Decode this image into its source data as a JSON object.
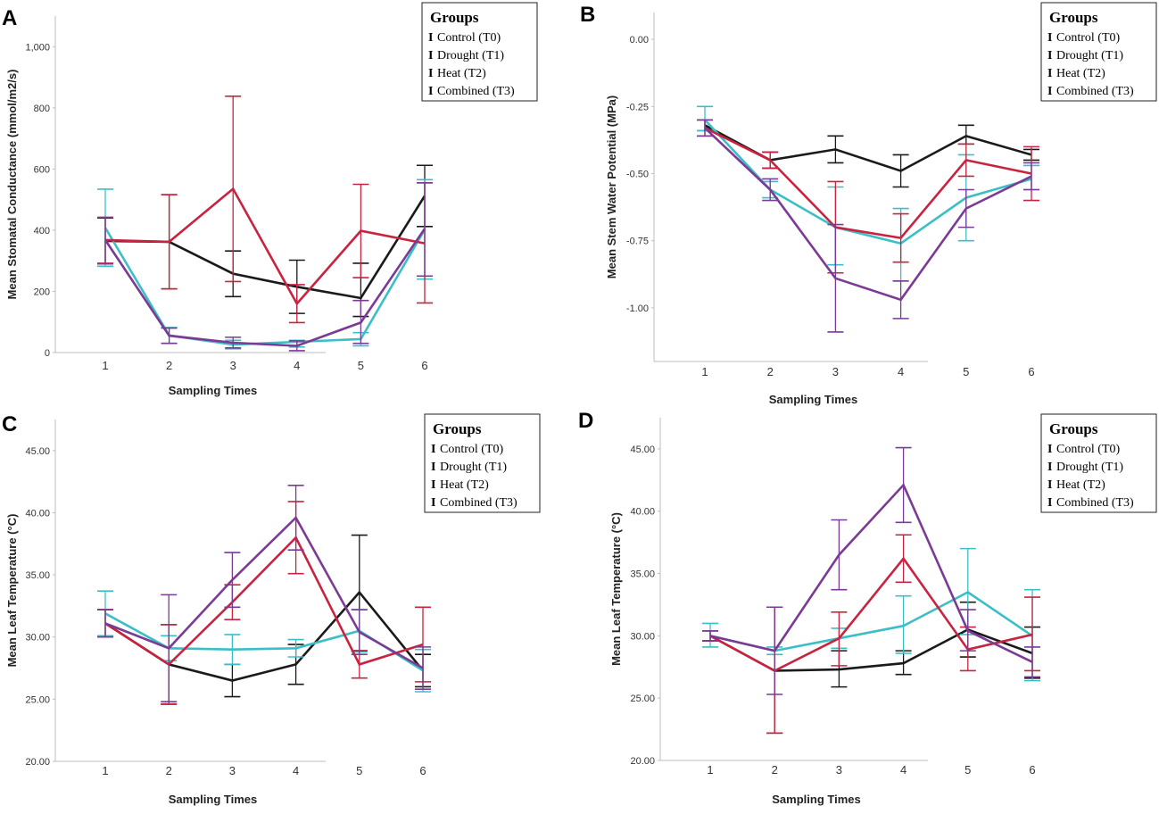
{
  "colors": {
    "control": "#1a1a1a",
    "drought": "#3bbfc6",
    "heat": "#c8233f",
    "combined": "#7b3a94"
  },
  "legend": {
    "title": "Groups",
    "items": [
      "Control (T0)",
      "Drought (T1)",
      "Heat (T2)",
      "Combined (T3)"
    ],
    "marker": "I"
  },
  "chart_data": [
    {
      "panel": "A",
      "type": "line",
      "title": "",
      "xlabel": "Sampling Times",
      "ylabel": "Mean Stomatal Conductance (mmol/m2/s)",
      "x": [
        1,
        2,
        3,
        4,
        5,
        6
      ],
      "ylim": [
        0,
        1100
      ],
      "yticks": [
        0,
        200,
        400,
        600,
        800,
        1000
      ],
      "ytick_labels": [
        "0",
        "200",
        "400",
        "600",
        "800",
        "1,000"
      ],
      "series": [
        {
          "name": "Control (T0)",
          "values": [
            365,
            362,
            258,
            215,
            178,
            512
          ],
          "err_low": [
            290,
            208,
            183,
            128,
            118,
            412
          ],
          "err_high": [
            440,
            516,
            332,
            302,
            292,
            612
          ]
        },
        {
          "name": "Drought (T1)",
          "values": [
            408,
            56,
            26,
            35,
            44,
            402
          ],
          "err_low": [
            282,
            30,
            12,
            18,
            22,
            240
          ],
          "err_high": [
            534,
            82,
            40,
            40,
            65,
            565
          ]
        },
        {
          "name": "Heat (T2)",
          "values": [
            368,
            362,
            535,
            160,
            398,
            357
          ],
          "err_low": [
            292,
            208,
            232,
            98,
            245,
            162
          ],
          "err_high": [
            442,
            516,
            838,
            222,
            550,
            555
          ]
        },
        {
          "name": "Combined (T3)",
          "values": [
            368,
            55,
            32,
            22,
            98,
            405
          ],
          "err_low": [
            290,
            30,
            15,
            6,
            30,
            250
          ],
          "err_high": [
            442,
            80,
            50,
            38,
            170,
            555
          ]
        }
      ]
    },
    {
      "panel": "B",
      "type": "line",
      "title": "",
      "xlabel": "Sampling Times",
      "ylabel": "Mean Stem Water Potential (MPa)",
      "x": [
        1,
        2,
        3,
        4,
        5,
        6
      ],
      "ylim": [
        -1.2,
        0.1
      ],
      "yticks": [
        -1.0,
        -0.75,
        -0.5,
        -0.25,
        0.0
      ],
      "ytick_labels": [
        "-1.00",
        "-0.75",
        "-0.50",
        "-0.25",
        "0.00"
      ],
      "series": [
        {
          "name": "Control (T0)",
          "values": [
            -0.32,
            -0.45,
            -0.41,
            -0.49,
            -0.36,
            -0.43
          ],
          "err_low": [
            -0.34,
            -0.48,
            -0.46,
            -0.55,
            -0.39,
            -0.45
          ],
          "err_high": [
            -0.3,
            -0.42,
            -0.36,
            -0.43,
            -0.32,
            -0.41
          ]
        },
        {
          "name": "Drought (T1)",
          "values": [
            -0.3,
            -0.56,
            -0.7,
            -0.76,
            -0.59,
            -0.52
          ],
          "err_low": [
            -0.34,
            -0.59,
            -0.84,
            -0.9,
            -0.75,
            -0.56
          ],
          "err_high": [
            -0.25,
            -0.53,
            -0.55,
            -0.63,
            -0.43,
            -0.47
          ]
        },
        {
          "name": "Heat (T2)",
          "values": [
            -0.33,
            -0.45,
            -0.7,
            -0.74,
            -0.45,
            -0.5
          ],
          "err_low": [
            -0.36,
            -0.48,
            -0.87,
            -0.83,
            -0.51,
            -0.6
          ],
          "err_high": [
            -0.3,
            -0.42,
            -0.53,
            -0.65,
            -0.39,
            -0.4
          ]
        },
        {
          "name": "Combined (T3)",
          "values": [
            -0.33,
            -0.56,
            -0.89,
            -0.97,
            -0.63,
            -0.51
          ],
          "err_low": [
            -0.36,
            -0.6,
            -1.09,
            -1.04,
            -0.7,
            -0.56
          ],
          "err_high": [
            -0.3,
            -0.52,
            -0.69,
            -0.9,
            -0.56,
            -0.46
          ]
        }
      ]
    },
    {
      "panel": "C",
      "type": "line",
      "title": "",
      "xlabel": "Sampling Times",
      "ylabel": "Mean Leaf Temperature (°C)",
      "x": [
        1,
        2,
        3,
        4,
        5,
        6
      ],
      "ylim": [
        20,
        47.5
      ],
      "yticks": [
        20,
        25,
        30,
        35,
        40,
        45
      ],
      "ytick_labels": [
        "20.00",
        "25.00",
        "30.00",
        "35.00",
        "40.00",
        "45.00"
      ],
      "series": [
        {
          "name": "Control (T0)",
          "values": [
            31.1,
            27.8,
            26.5,
            27.8,
            33.6,
            27.3
          ],
          "err_low": [
            30.0,
            24.6,
            25.2,
            26.2,
            28.9,
            26.0
          ],
          "err_high": [
            32.2,
            31.0,
            27.8,
            29.4,
            38.2,
            28.6
          ]
        },
        {
          "name": "Drought (T1)",
          "values": [
            31.9,
            29.1,
            29.0,
            29.1,
            30.5,
            27.3
          ],
          "err_low": [
            30.1,
            28.1,
            27.8,
            28.4,
            28.8,
            25.6
          ],
          "err_high": [
            33.7,
            30.1,
            30.2,
            29.8,
            32.2,
            29.0
          ]
        },
        {
          "name": "Heat (T2)",
          "values": [
            31.1,
            27.8,
            32.8,
            38.0,
            27.8,
            29.4
          ],
          "err_low": [
            30.0,
            24.6,
            31.4,
            35.1,
            26.7,
            26.4
          ],
          "err_high": [
            32.2,
            31.0,
            34.2,
            40.9,
            28.9,
            32.4
          ]
        },
        {
          "name": "Combined (T3)",
          "values": [
            31.1,
            29.1,
            34.6,
            39.6,
            30.4,
            27.5
          ],
          "err_low": [
            30.0,
            24.8,
            32.4,
            37.0,
            28.6,
            25.8
          ],
          "err_high": [
            32.2,
            33.4,
            36.8,
            42.2,
            32.2,
            29.2
          ]
        }
      ]
    },
    {
      "panel": "D",
      "type": "line",
      "title": "",
      "xlabel": "Sampling Times",
      "ylabel": "Mean Leaf Temperature (°C)",
      "x": [
        1,
        2,
        3,
        4,
        5,
        6
      ],
      "ylim": [
        20,
        47.5
      ],
      "yticks": [
        20,
        25,
        30,
        35,
        40,
        45
      ],
      "ytick_labels": [
        "20.00",
        "25.00",
        "30.00",
        "35.00",
        "40.00",
        "45.00"
      ],
      "series": [
        {
          "name": "Control (T0)",
          "values": [
            30.0,
            27.2,
            27.3,
            27.8,
            30.5,
            28.6
          ],
          "err_low": [
            29.6,
            22.2,
            25.9,
            26.9,
            28.3,
            26.6
          ],
          "err_high": [
            30.4,
            32.3,
            28.8,
            28.8,
            32.7,
            30.7
          ]
        },
        {
          "name": "Drought (T1)",
          "values": [
            30.0,
            28.8,
            29.8,
            30.8,
            33.5,
            30.0
          ],
          "err_low": [
            29.1,
            28.5,
            29.0,
            28.6,
            30.1,
            26.4
          ],
          "err_high": [
            31.0,
            29.1,
            30.6,
            33.2,
            37.0,
            33.7
          ]
        },
        {
          "name": "Heat (T2)",
          "values": [
            30.0,
            27.2,
            29.8,
            36.2,
            28.9,
            30.1
          ],
          "err_low": [
            29.6,
            22.2,
            27.6,
            34.3,
            27.2,
            27.2
          ],
          "err_high": [
            30.4,
            32.3,
            31.9,
            38.1,
            30.7,
            33.1
          ]
        },
        {
          "name": "Combined (T3)",
          "values": [
            30.0,
            28.8,
            36.5,
            42.1,
            30.4,
            27.9
          ],
          "err_low": [
            29.6,
            25.3,
            33.7,
            39.1,
            28.8,
            26.7
          ],
          "err_high": [
            30.4,
            32.3,
            39.3,
            45.1,
            32.1,
            29.1
          ]
        }
      ]
    }
  ]
}
